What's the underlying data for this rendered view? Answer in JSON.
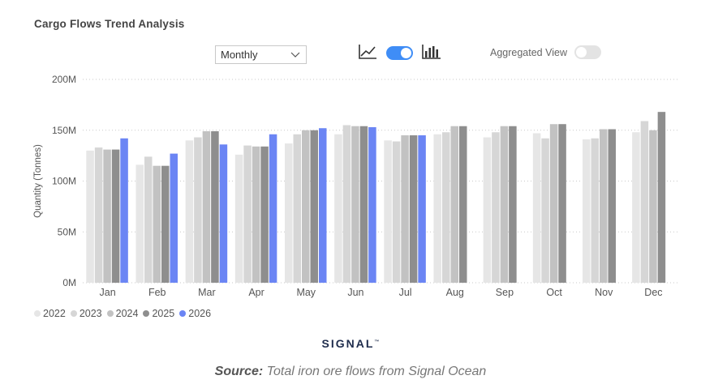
{
  "header": {
    "title": "Cargo Flows Trend Analysis"
  },
  "controls": {
    "period_select": "Monthly",
    "line_chart_icon": "line-chart-icon",
    "bar_chart_icon": "bar-chart-icon",
    "chart_type_toggle_on": true,
    "aggregated_label": "Aggregated View",
    "aggregated_on": false,
    "accent_color": "#3f8df6"
  },
  "footer": {
    "logo": "SIGNAL",
    "logo_mark": "™",
    "source_label": "Source:",
    "source_text": " Total iron ore flows from Signal Ocean"
  },
  "chart_data": {
    "type": "bar",
    "title": "",
    "xlabel": "",
    "ylabel": "Quantity (Tonnes)",
    "ylim": [
      0,
      200000000
    ],
    "yticks": [
      0,
      50000000,
      100000000,
      150000000,
      200000000
    ],
    "ytick_labels": [
      "0M",
      "50M",
      "100M",
      "150M",
      "200M"
    ],
    "grid": "horizontal dotted",
    "legend_position": "bottom-left",
    "categories": [
      "Jan",
      "Feb",
      "Mar",
      "Apr",
      "May",
      "Jun",
      "Jul",
      "Aug",
      "Sep",
      "Oct",
      "Nov",
      "Dec"
    ],
    "series": [
      {
        "name": "2022",
        "color": "#e6e6e6",
        "values": [
          130000000,
          116000000,
          140000000,
          126000000,
          137000000,
          146000000,
          140000000,
          146000000,
          143000000,
          147000000,
          141000000,
          148000000
        ]
      },
      {
        "name": "2023",
        "color": "#d6d6d6",
        "values": [
          133000000,
          124000000,
          143000000,
          135000000,
          146000000,
          155000000,
          139000000,
          148000000,
          148000000,
          142000000,
          142000000,
          159000000
        ]
      },
      {
        "name": "2024",
        "color": "#c2c2c2",
        "values": [
          131000000,
          115000000,
          149000000,
          134000000,
          150000000,
          154000000,
          145000000,
          154000000,
          154000000,
          156000000,
          151000000,
          150000000
        ]
      },
      {
        "name": "2025",
        "color": "#8e8e8e",
        "values": [
          131000000,
          115000000,
          149000000,
          134000000,
          150000000,
          154000000,
          145000000,
          154000000,
          154000000,
          156000000,
          151000000,
          168000000
        ]
      },
      {
        "name": "2026",
        "color": "#6b85f4",
        "values": [
          142000000,
          127000000,
          136000000,
          146000000,
          152000000,
          153000000,
          145000000,
          null,
          null,
          null,
          null,
          null
        ]
      }
    ]
  }
}
